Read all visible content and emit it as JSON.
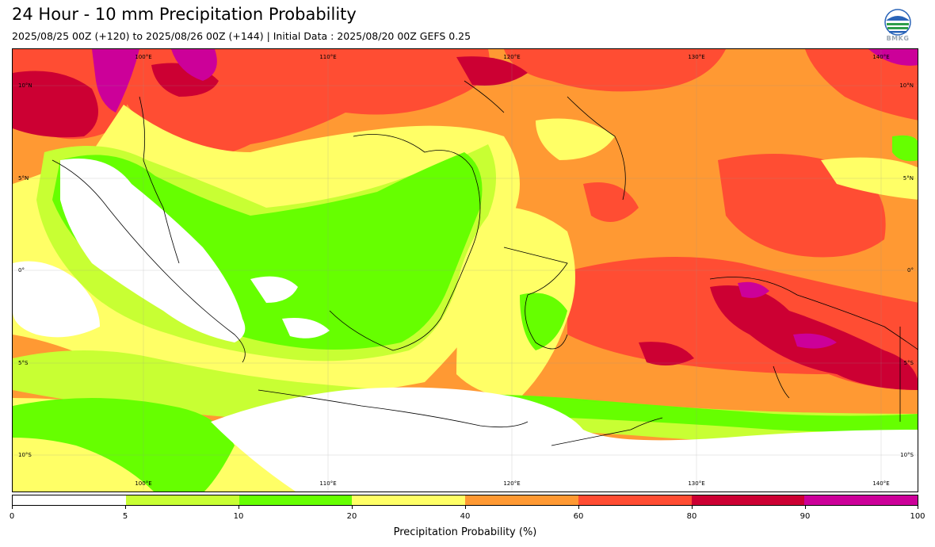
{
  "header": {
    "title": "24 Hour - 10 mm Precipitation Probability",
    "subtitle": "2025/08/25 00Z (+120) to 2025/08/26 00Z (+144) | Initial Data : 2025/08/20 00Z GEFS 0.25",
    "logo_text": "BMKG"
  },
  "map": {
    "lon_labels": [
      "100°E",
      "110°E",
      "120°E",
      "130°E",
      "140°E"
    ],
    "lat_labels": [
      "10°N",
      "5°N",
      "0°",
      "5°S",
      "10°S"
    ]
  },
  "legend": {
    "title": "Precipitation Probability (%)",
    "ticks": [
      "0",
      "5",
      "10",
      "20",
      "40",
      "60",
      "80",
      "90",
      "100"
    ],
    "colors": [
      "#ffffff",
      "#c8ff33",
      "#66ff00",
      "#ffff66",
      "#ff9933",
      "#ff4d33",
      "#cc0033",
      "#cc0099"
    ]
  }
}
